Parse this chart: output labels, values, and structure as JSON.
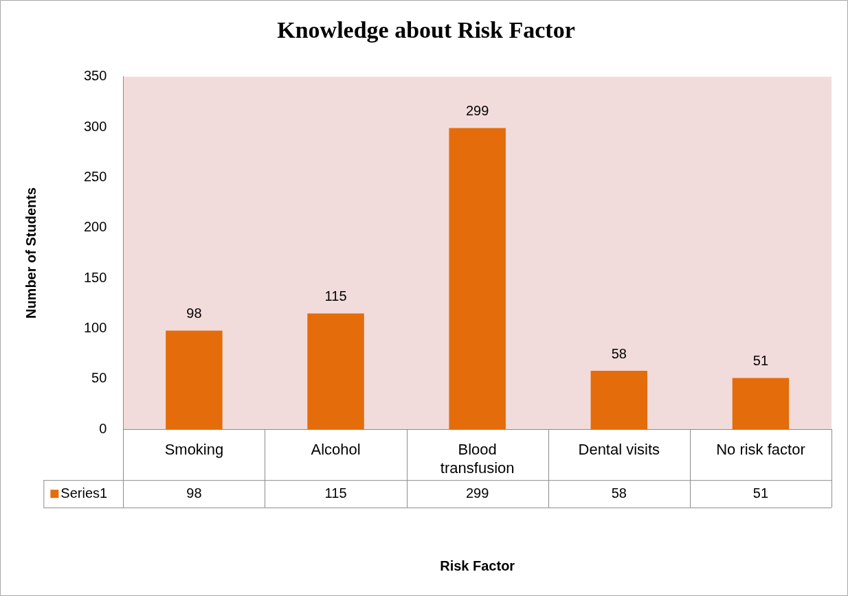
{
  "chart_data": {
    "type": "bar",
    "title": "Knowledge about Risk Factor",
    "annotations": [
      "Risk Factor",
      "98",
      "115",
      "299",
      "58",
      "51"
    ],
    "ylabel": "Number of Students",
    "categories": [
      "Smoking",
      "Alcohol",
      "Blood transfusion",
      "Dental visits",
      "No risk factor"
    ],
    "series": [
      {
        "name": "Series1",
        "color": "#e46c0a",
        "values": [
          98,
          115,
          299,
          58,
          51
        ]
      }
    ],
    "ylim": [
      0,
      350
    ],
    "yticks": [
      0,
      50,
      100,
      150,
      200,
      250,
      300,
      350
    ],
    "grid": false,
    "data_labels": true
  }
}
